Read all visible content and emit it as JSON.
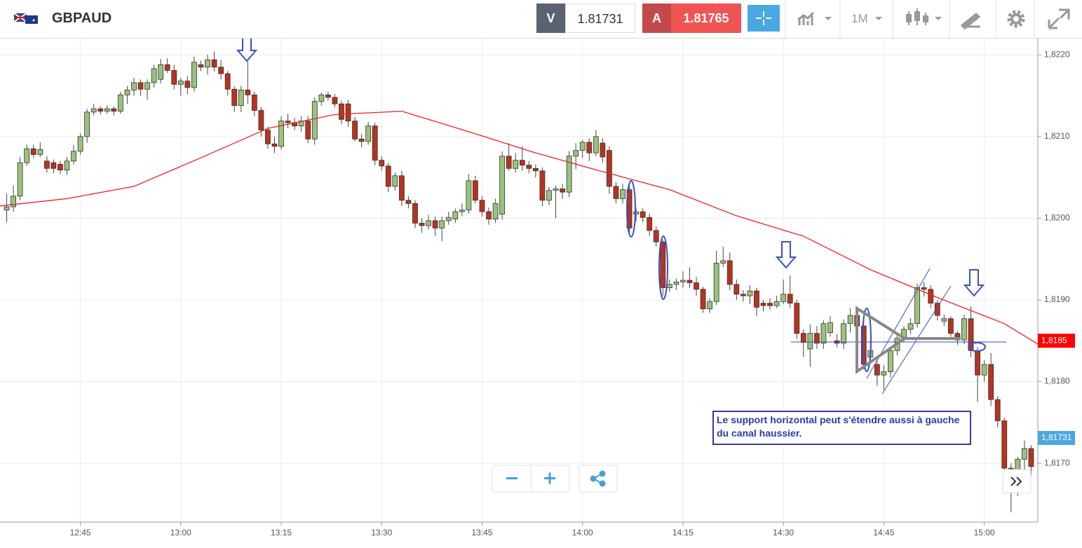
{
  "header": {
    "symbol": "GBPAUD",
    "sell_label": "V",
    "sell": "1.81731",
    "buy_label": "A",
    "buy": "1.81765",
    "timeframe": "1M"
  },
  "note": "Le support horizontal peut s'étendre aussi à gauche du canal haussier.",
  "chart_data": {
    "type": "candlestick",
    "up_color": "#99c37c",
    "down_color": "#b8331e",
    "x": [
      "12:34",
      "12:35",
      "12:36",
      "12:37",
      "12:38",
      "12:39",
      "12:40",
      "12:41",
      "12:42",
      "12:43",
      "12:44",
      "12:45",
      "12:46",
      "12:47",
      "12:48",
      "12:49",
      "12:50",
      "12:51",
      "12:52",
      "12:53",
      "12:54",
      "12:55",
      "12:56",
      "12:57",
      "12:58",
      "12:59",
      "13:00",
      "13:01",
      "13:02",
      "13:03",
      "13:04",
      "13:05",
      "13:06",
      "13:07",
      "13:08",
      "13:09",
      "13:10",
      "13:11",
      "13:12",
      "13:13",
      "13:14",
      "13:15",
      "13:16",
      "13:17",
      "13:18",
      "13:19",
      "13:20",
      "13:21",
      "13:22",
      "13:23",
      "13:24",
      "13:25",
      "13:26",
      "13:27",
      "13:28",
      "13:29",
      "13:30",
      "13:31",
      "13:32",
      "13:33",
      "13:34",
      "13:35",
      "13:36",
      "13:37",
      "13:38",
      "13:39",
      "13:40",
      "13:41",
      "13:42",
      "13:43",
      "13:44",
      "13:45",
      "13:46",
      "13:47",
      "13:48",
      "13:49",
      "13:50",
      "13:51",
      "13:52",
      "13:53",
      "13:54",
      "13:55",
      "13:56",
      "13:57",
      "13:58",
      "13:59",
      "14:00",
      "14:01",
      "14:02",
      "14:03",
      "14:04",
      "14:05",
      "14:06",
      "14:07",
      "14:08",
      "14:09",
      "14:10",
      "14:11",
      "14:12",
      "14:13",
      "14:14",
      "14:15",
      "14:16",
      "14:17",
      "14:18",
      "14:19",
      "14:20",
      "14:21",
      "14:22",
      "14:23",
      "14:24",
      "14:25",
      "14:26",
      "14:27",
      "14:28",
      "14:29",
      "14:30",
      "14:31",
      "14:32",
      "14:33",
      "14:34",
      "14:35",
      "14:36",
      "14:37",
      "14:38",
      "14:39",
      "14:40",
      "14:41",
      "14:42",
      "14:43",
      "14:44",
      "14:45",
      "14:46",
      "14:47",
      "14:48",
      "14:49",
      "14:50",
      "14:51",
      "14:52",
      "14:53",
      "14:54",
      "14:55",
      "14:56",
      "14:57",
      "14:58",
      "14:59",
      "15:00",
      "15:01",
      "15:02",
      "15:03",
      "15:04",
      "15:05",
      "15:06",
      "15:07"
    ],
    "ohlc": [
      [
        1.8201,
        1.8203,
        1.81995,
        1.82014
      ],
      [
        1.82014,
        1.8204,
        1.82008,
        1.82027
      ],
      [
        1.82027,
        1.82075,
        1.82022,
        1.82068
      ],
      [
        1.82068,
        1.8209,
        1.82064,
        1.82085
      ],
      [
        1.82085,
        1.8209,
        1.82074,
        1.82078
      ],
      [
        1.82078,
        1.82093,
        1.82075,
        1.82084
      ],
      [
        1.8207,
        1.82076,
        1.82056,
        1.82061
      ],
      [
        1.82068,
        1.82072,
        1.82055,
        1.82061
      ],
      [
        1.82066,
        1.8207,
        1.82054,
        1.82059
      ],
      [
        1.82059,
        1.82075,
        1.82053,
        1.8207
      ],
      [
        1.8207,
        1.8209,
        1.82066,
        1.82082
      ],
      [
        1.82082,
        1.82104,
        1.82078,
        1.821
      ],
      [
        1.821,
        1.82134,
        1.82092,
        1.8213
      ],
      [
        1.8213,
        1.8214,
        1.82126,
        1.82134
      ],
      [
        1.82134,
        1.82137,
        1.82127,
        1.82131
      ],
      [
        1.82131,
        1.82138,
        1.82128,
        1.82134
      ],
      [
        1.82134,
        1.82137,
        1.82126,
        1.82131
      ],
      [
        1.82131,
        1.82155,
        1.82128,
        1.82151
      ],
      [
        1.82151,
        1.82162,
        1.8214,
        1.82157
      ],
      [
        1.82157,
        1.82172,
        1.8215,
        1.82166
      ],
      [
        1.82166,
        1.8217,
        1.8215,
        1.82158
      ],
      [
        1.82158,
        1.8217,
        1.82145,
        1.82166
      ],
      [
        1.82166,
        1.82188,
        1.8216,
        1.82183
      ],
      [
        1.8217,
        1.82195,
        1.82165,
        1.82188
      ],
      [
        1.82188,
        1.82196,
        1.82178,
        1.82181
      ],
      [
        1.82181,
        1.82188,
        1.82158,
        1.82164
      ],
      [
        1.82164,
        1.82172,
        1.8215,
        1.82168
      ],
      [
        1.82168,
        1.82174,
        1.82152,
        1.8216
      ],
      [
        1.8216,
        1.82198,
        1.82155,
        1.82191
      ],
      [
        1.82188,
        1.82193,
        1.8218,
        1.82185
      ],
      [
        1.82185,
        1.822,
        1.82176,
        1.82194
      ],
      [
        1.82194,
        1.82204,
        1.8218,
        1.82185
      ],
      [
        1.82185,
        1.82194,
        1.8217,
        1.82177
      ],
      [
        1.82177,
        1.8218,
        1.8215,
        1.82158
      ],
      [
        1.82158,
        1.82162,
        1.8213,
        1.82138
      ],
      [
        1.82138,
        1.82162,
        1.8213,
        1.82157
      ],
      [
        1.82157,
        1.82192,
        1.8214,
        1.82151
      ],
      [
        1.82151,
        1.82155,
        1.82125,
        1.82132
      ],
      [
        1.82132,
        1.82136,
        1.821,
        1.82108
      ],
      [
        1.82108,
        1.82112,
        1.82085,
        1.82091
      ],
      [
        1.82091,
        1.821,
        1.8208,
        1.82088
      ],
      [
        1.82088,
        1.82125,
        1.82084,
        1.82119
      ],
      [
        1.82119,
        1.82128,
        1.8211,
        1.82117
      ],
      [
        1.82117,
        1.82123,
        1.82108,
        1.82113
      ],
      [
        1.82113,
        1.82125,
        1.82106,
        1.82119
      ],
      [
        1.82119,
        1.82125,
        1.82092,
        1.82097
      ],
      [
        1.82097,
        1.82148,
        1.8209,
        1.82143
      ],
      [
        1.82143,
        1.82154,
        1.82138,
        1.82151
      ],
      [
        1.82151,
        1.82155,
        1.82144,
        1.82148
      ],
      [
        1.82148,
        1.82152,
        1.82136,
        1.8214
      ],
      [
        1.8214,
        1.82144,
        1.82115,
        1.82121
      ],
      [
        1.8214,
        1.82145,
        1.82112,
        1.82119
      ],
      [
        1.82119,
        1.82124,
        1.82094,
        1.82097
      ],
      [
        1.82097,
        1.82103,
        1.82087,
        1.82094
      ],
      [
        1.82094,
        1.82118,
        1.8209,
        1.82113
      ],
      [
        1.82113,
        1.82117,
        1.82065,
        1.82071
      ],
      [
        1.82071,
        1.82076,
        1.82058,
        1.82064
      ],
      [
        1.82064,
        1.82068,
        1.82032,
        1.82039
      ],
      [
        1.82039,
        1.82056,
        1.82034,
        1.82052
      ],
      [
        1.82052,
        1.82058,
        1.82015,
        1.82022
      ],
      [
        1.82022,
        1.82027,
        1.82012,
        1.82018
      ],
      [
        1.82018,
        1.82022,
        1.81988,
        1.81994
      ],
      [
        1.81994,
        1.82,
        1.81982,
        1.81991
      ],
      [
        1.81991,
        1.82004,
        1.81986,
        1.81997
      ],
      [
        1.81997,
        1.82002,
        1.81978,
        1.81988
      ],
      [
        1.81988,
        1.82002,
        1.81972,
        1.81997
      ],
      [
        1.81997,
        1.82008,
        1.81992,
        1.82001
      ],
      [
        1.81999,
        1.82012,
        1.81994,
        1.82008
      ],
      [
        1.82008,
        1.82018,
        1.82003,
        1.8201
      ],
      [
        1.8201,
        1.82054,
        1.82006,
        1.82046
      ],
      [
        1.82046,
        1.82052,
        1.82018,
        1.82022
      ],
      [
        1.82022,
        1.82027,
        1.82002,
        1.82008
      ],
      [
        1.82008,
        1.82013,
        1.81992,
        1.81999
      ],
      [
        1.81999,
        1.82024,
        1.81994,
        1.82018
      ],
      [
        1.82005,
        1.82082,
        1.81998,
        1.82076
      ],
      [
        1.82076,
        1.82092,
        1.82058,
        1.82061
      ],
      [
        1.82061,
        1.8208,
        1.82056,
        1.82071
      ],
      [
        1.82071,
        1.82088,
        1.82058,
        1.82065
      ],
      [
        1.82065,
        1.8207,
        1.82055,
        1.82061
      ],
      [
        1.82061,
        1.82066,
        1.8205,
        1.82058
      ],
      [
        1.82058,
        1.82062,
        1.82015,
        1.82022
      ],
      [
        1.82022,
        1.82038,
        1.82016,
        1.82034
      ],
      [
        1.82034,
        1.8204,
        1.82,
        1.82036
      ],
      [
        1.82036,
        1.82042,
        1.82024,
        1.82032
      ],
      [
        1.82032,
        1.82082,
        1.82026,
        1.82076
      ],
      [
        1.82076,
        1.82092,
        1.8206,
        1.82083
      ],
      [
        1.82083,
        1.82096,
        1.82074,
        1.82093
      ],
      [
        1.82093,
        1.82098,
        1.8207,
        1.8208
      ],
      [
        1.8208,
        1.82108,
        1.82076,
        1.821
      ],
      [
        1.82092,
        1.82098,
        1.82068,
        1.82075
      ],
      [
        1.82083,
        1.82088,
        1.8203,
        1.82039
      ],
      [
        1.82039,
        1.82044,
        1.82018,
        1.82024
      ],
      [
        1.82024,
        1.82042,
        1.82018,
        1.82035
      ],
      [
        1.82035,
        1.8204,
        1.81982,
        1.81988
      ],
      [
        1.82005,
        1.82012,
        1.81996,
        1.82008
      ],
      [
        1.82008,
        1.82012,
        1.81995,
        1.82001
      ],
      [
        1.82001,
        1.82006,
        1.81978,
        1.81985
      ],
      [
        1.81985,
        1.8199,
        1.81965,
        1.81971
      ],
      [
        1.81971,
        1.81974,
        1.81905,
        1.81915
      ],
      [
        1.81915,
        1.81925,
        1.8191,
        1.81919
      ],
      [
        1.81919,
        1.81926,
        1.81912,
        1.81922
      ],
      [
        1.81922,
        1.81935,
        1.81915,
        1.81924
      ],
      [
        1.81924,
        1.8194,
        1.81915,
        1.81921
      ],
      [
        1.81921,
        1.81928,
        1.81905,
        1.81913
      ],
      [
        1.81913,
        1.81916,
        1.81884,
        1.81889
      ],
      [
        1.81889,
        1.81902,
        1.81884,
        1.81898
      ],
      [
        1.81898,
        1.8196,
        1.81894,
        1.81945
      ],
      [
        1.81945,
        1.81965,
        1.8194,
        1.81948
      ],
      [
        1.81948,
        1.81958,
        1.81912,
        1.81919
      ],
      [
        1.81919,
        1.81925,
        1.819,
        1.81907
      ],
      [
        1.81907,
        1.81912,
        1.81898,
        1.81905
      ],
      [
        1.81905,
        1.81918,
        1.81895,
        1.81911
      ],
      [
        1.81911,
        1.81915,
        1.8188,
        1.81891
      ],
      [
        1.81896,
        1.819,
        1.81886,
        1.81893
      ],
      [
        1.81896,
        1.81902,
        1.81888,
        1.81893
      ],
      [
        1.81893,
        1.81905,
        1.8189,
        1.81898
      ],
      [
        1.81898,
        1.81925,
        1.81895,
        1.81907
      ],
      [
        1.81907,
        1.8193,
        1.8189,
        1.81896
      ],
      [
        1.81896,
        1.819,
        1.81852,
        1.81859
      ],
      [
        1.81859,
        1.81864,
        1.8183,
        1.81848
      ],
      [
        1.8184,
        1.8187,
        1.81818,
        1.81859
      ],
      [
        1.81859,
        1.81868,
        1.8184,
        1.81847
      ],
      [
        1.81847,
        1.81875,
        1.8184,
        1.81871
      ],
      [
        1.8186,
        1.8188,
        1.81855,
        1.81872
      ],
      [
        1.8185,
        1.81858,
        1.81842,
        1.81847
      ],
      [
        1.81847,
        1.81876,
        1.8184,
        1.81871
      ],
      [
        1.81871,
        1.8189,
        1.8186,
        1.81881
      ],
      [
        1.81881,
        1.81888,
        1.8186,
        1.81868
      ],
      [
        1.81868,
        1.8188,
        1.81815,
        1.81821
      ],
      [
        1.8183,
        1.8185,
        1.81825,
        1.81838
      ],
      [
        1.81821,
        1.81826,
        1.81795,
        1.81808
      ],
      [
        1.81808,
        1.8182,
        1.8179,
        1.81812
      ],
      [
        1.81812,
        1.81842,
        1.81805,
        1.81838
      ],
      [
        1.81838,
        1.81858,
        1.81832,
        1.81853
      ],
      [
        1.81853,
        1.81868,
        1.81848,
        1.81864
      ],
      [
        1.81864,
        1.81878,
        1.81858,
        1.81871
      ],
      [
        1.81871,
        1.8192,
        1.81866,
        1.81915
      ],
      [
        1.81915,
        1.81922,
        1.81904,
        1.81913
      ],
      [
        1.81913,
        1.81918,
        1.8189,
        1.81896
      ],
      [
        1.81896,
        1.819,
        1.81875,
        1.81881
      ],
      [
        1.81874,
        1.81882,
        1.81868,
        1.81877
      ],
      [
        1.81877,
        1.8188,
        1.81855,
        1.81859
      ],
      [
        1.81859,
        1.81862,
        1.81845,
        1.81851
      ],
      [
        1.81851,
        1.81882,
        1.81846,
        1.81877
      ],
      [
        1.81877,
        1.81892,
        1.8183,
        1.81838
      ],
      [
        1.81838,
        1.81842,
        1.81775,
        1.81808
      ],
      [
        1.81808,
        1.81826,
        1.818,
        1.81821
      ],
      [
        1.81821,
        1.81835,
        1.8177,
        1.81778
      ],
      [
        1.81778,
        1.81782,
        1.81744,
        1.81752
      ],
      [
        1.81752,
        1.81756,
        1.81685,
        1.81694
      ],
      [
        1.81694,
        1.817,
        1.8164,
        1.8169
      ],
      [
        1.8169,
        1.81708,
        1.8166,
        1.81705
      ],
      [
        1.81705,
        1.81728,
        1.81688,
        1.81718
      ],
      [
        1.81718,
        1.81722,
        1.81685,
        1.81696
      ]
    ],
    "overlay": {
      "type": "line",
      "color": "#ee2222",
      "x": [
        "12:33",
        "12:43",
        "12:53",
        "13:03",
        "13:13",
        "13:23",
        "13:33",
        "13:43",
        "13:53",
        "14:03",
        "14:13",
        "14:23",
        "14:33",
        "14:43",
        "14:53",
        "15:03",
        "15:08"
      ],
      "values": [
        1.82015,
        1.82024,
        1.82039,
        1.82074,
        1.8211,
        1.82127,
        1.82131,
        1.82106,
        1.8208,
        1.82057,
        1.82035,
        1.82003,
        1.81978,
        1.81937,
        1.81903,
        1.81871,
        1.81846
      ]
    },
    "xlim": [
      "12:33",
      "15:08"
    ],
    "xticks": [
      "12:45",
      "13:00",
      "13:15",
      "13:30",
      "13:45",
      "14:00",
      "14:15",
      "14:30",
      "14:45",
      "15:00"
    ],
    "ylim": [
      1.81628,
      1.8222
    ],
    "yticks": [
      {
        "value": 1.817,
        "label": "1,8170"
      },
      {
        "value": 1.818,
        "label": "1,8180"
      },
      {
        "value": 1.819,
        "label": "1,8190"
      },
      {
        "value": 1.82,
        "label": "1,8200"
      },
      {
        "value": 1.821,
        "label": "1,8210"
      },
      {
        "value": 1.822,
        "label": "1,8220"
      }
    ],
    "grid": true,
    "price_tags": [
      {
        "value": 1.8185,
        "label": "1,8185",
        "color": "#ff0000"
      },
      {
        "value": 1.81731,
        "label": "1,81731",
        "color": "#4aa8e0"
      }
    ]
  }
}
